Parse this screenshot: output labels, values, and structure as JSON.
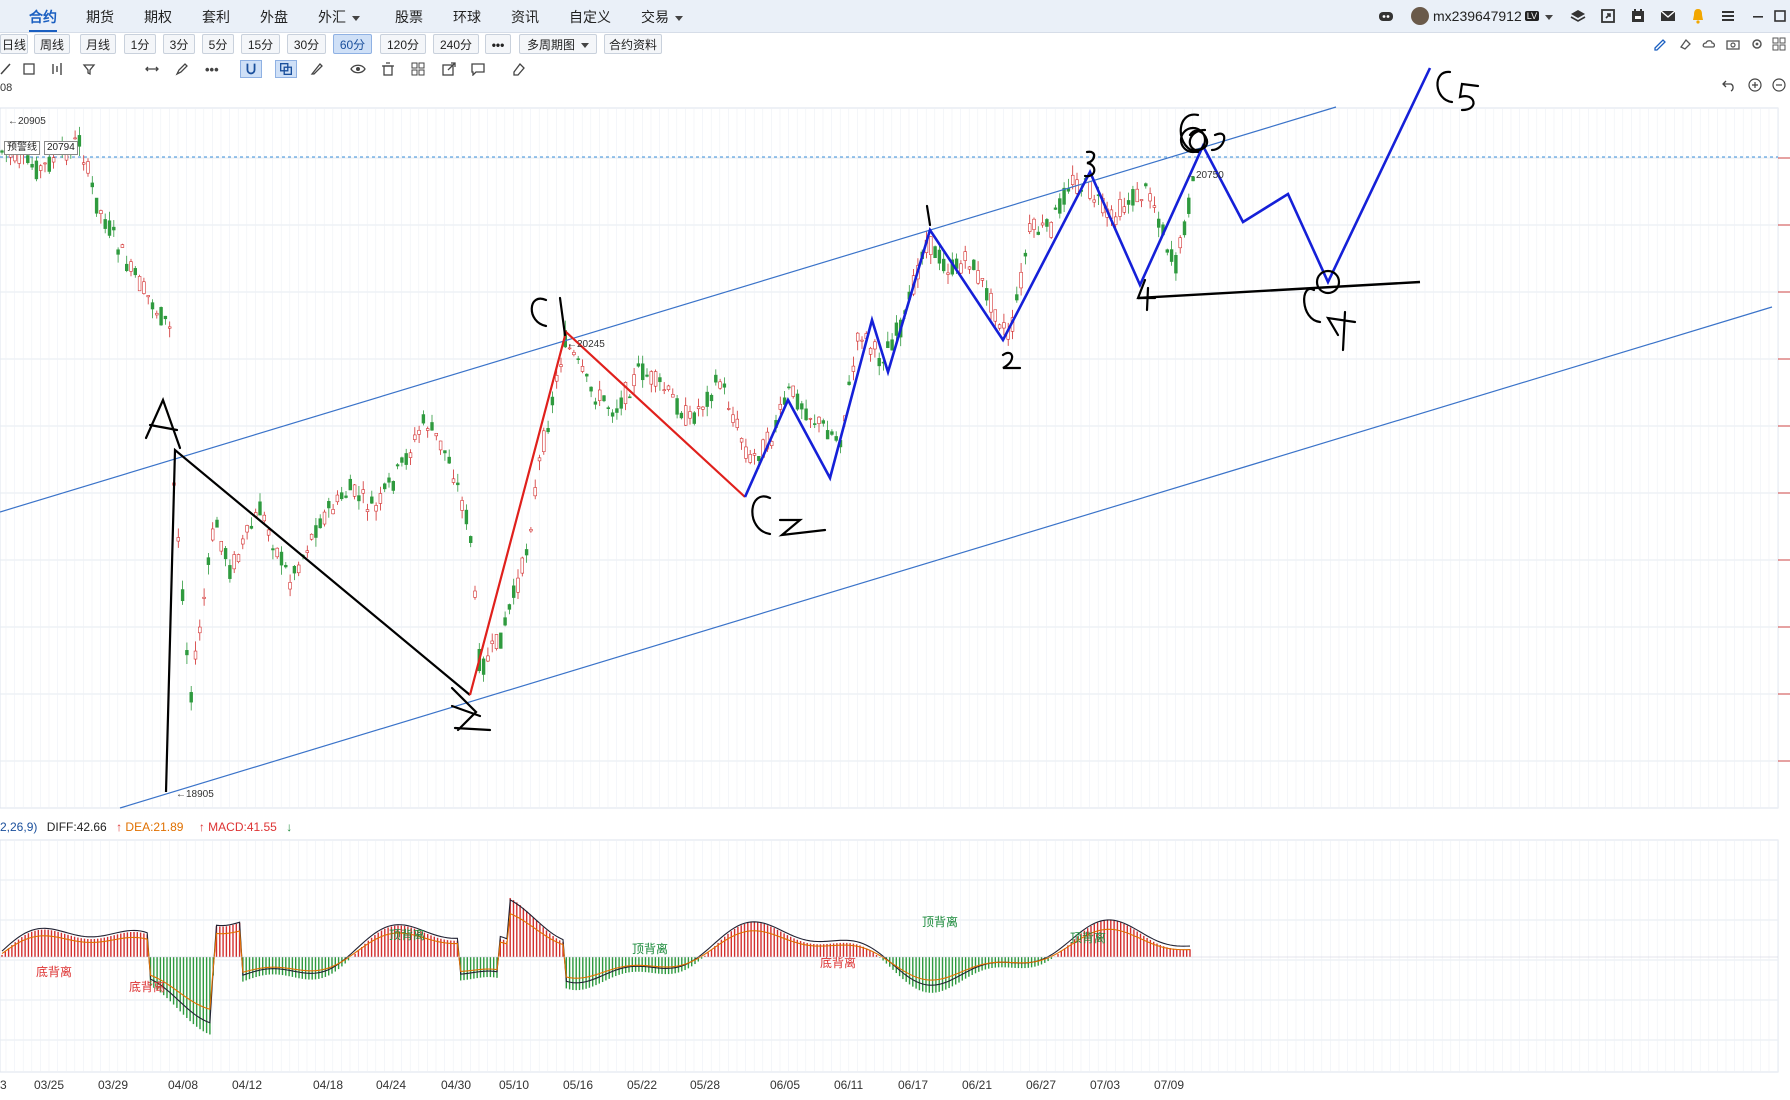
{
  "topnav": {
    "items": [
      {
        "label": "合约",
        "active": true
      },
      {
        "label": "期货"
      },
      {
        "label": "期权"
      },
      {
        "label": "套利"
      },
      {
        "label": "外盘"
      },
      {
        "label": "外汇",
        "dropdown": true
      },
      {
        "label": "股票"
      },
      {
        "label": "环球"
      },
      {
        "label": "资讯"
      },
      {
        "label": "自定义"
      },
      {
        "label": "交易",
        "dropdown": true
      }
    ],
    "username": "mx239647912",
    "level": "LV",
    "icons": [
      "vip-icon",
      "layers-icon",
      "window-icon",
      "calendar-icon",
      "mail-icon",
      "bell-icon",
      "menu-icon",
      "minimize-icon",
      "maximize-icon"
    ]
  },
  "periods": {
    "items": [
      "日线",
      "周线",
      "月线",
      "1分",
      "3分",
      "5分",
      "15分",
      "30分",
      "60分",
      "120分",
      "240分",
      "•••",
      "多周期图",
      "合约资料"
    ],
    "active": "60分"
  },
  "tools": {
    "items": [
      "pen-slash-icon",
      "shape-icon",
      "bar-icon",
      "filter-icon",
      "move-icon",
      "brush-icon",
      "more-icon",
      "magnet-icon",
      "copy-icon",
      "draw-icon",
      "eye-icon",
      "delete-icon",
      "grid-icon",
      "export-icon",
      "comment-icon",
      "eraser-icon"
    ]
  },
  "price_labels": {
    "high_left": "20905",
    "alert": "预警线",
    "alert_price": "20794",
    "peak_c1": "20245",
    "peak_right": "20750",
    "low": "18905",
    "top_left_fragment": "08"
  },
  "wave_labels": {
    "A": "A",
    "B": "B",
    "C1": "C1",
    "C2": "C2",
    "C3": "C3",
    "C4": "C4",
    "C5": "C5",
    "n1": "1",
    "n2": "2",
    "n3": "3",
    "n4": "4"
  },
  "macd": {
    "params": "2,26,9)",
    "diff_label": "DIFF:42.66",
    "dea_label": "DEA:21.89",
    "macd_label": "MACD:41.55",
    "annotations": [
      {
        "text": "底背离",
        "color": "#d33"
      },
      {
        "text": "底背离",
        "color": "#d33"
      },
      {
        "text": "顶背离",
        "color": "#1a8a3a"
      },
      {
        "text": "顶背离",
        "color": "#1a8a3a"
      },
      {
        "text": "底背离",
        "color": "#d33"
      },
      {
        "text": "顶背离",
        "color": "#1a8a3a"
      },
      {
        "text": "顶背离",
        "color": "#1a8a3a"
      }
    ]
  },
  "xaxis": {
    "labels": [
      "3",
      "03/25",
      "03/29",
      "04/08",
      "04/12",
      "04/18",
      "04/24",
      "04/30",
      "05/10",
      "05/16",
      "05/22",
      "05/28",
      "06/05",
      "06/11",
      "06/17",
      "06/21",
      "06/27",
      "07/03",
      "07/09"
    ]
  },
  "colors": {
    "up": "#d32f2f",
    "down": "#2e9a3e",
    "channel": "#3a73c9",
    "wave_black": "#000000",
    "wave_red": "#e0201c",
    "wave_blue": "#1520d8",
    "accent": "#1a5fc1"
  }
}
